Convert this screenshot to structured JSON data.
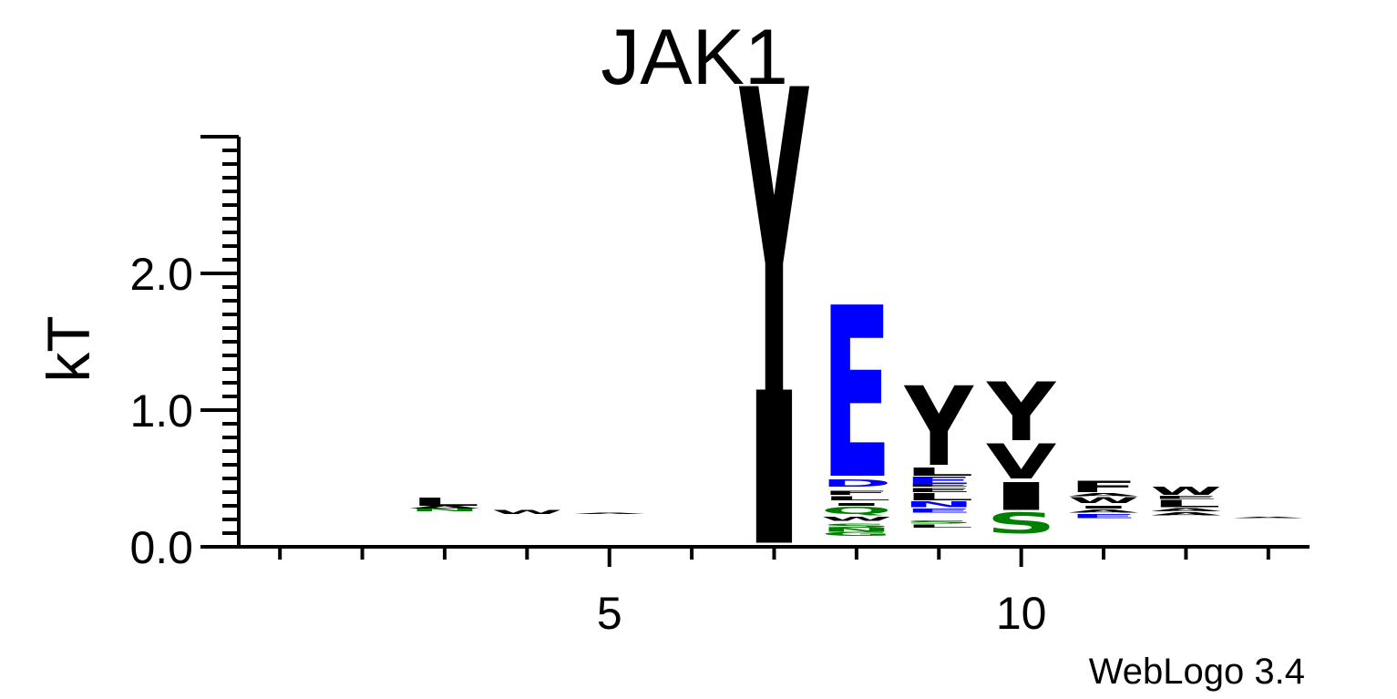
{
  "chart_data": {
    "type": "sequence-logo",
    "title": "JAK1",
    "ylabel": "kT",
    "xlabel": "",
    "ylim": [
      0,
      3.0
    ],
    "yticks": [
      {
        "value": 0,
        "label": "0.0"
      },
      {
        "value": 1,
        "label": "1.0"
      },
      {
        "value": 2,
        "label": "2.0"
      }
    ],
    "xlim": [
      0.5,
      13.5
    ],
    "xticks": [
      {
        "value": 5,
        "label": "5"
      },
      {
        "value": 10,
        "label": "10"
      }
    ],
    "credit": "WebLogo 3.4",
    "colors": {
      "hydrophobic": "#000000",
      "acidic": "#0000ff",
      "polar": "#008000",
      "axis": "#000000"
    },
    "positions": [
      {
        "pos": 3,
        "stack": [
          {
            "aa": "N",
            "color": "#008000",
            "base": 0.26,
            "height": 0.02
          },
          {
            "aa": "A",
            "color": "#000000",
            "base": 0.28,
            "height": 0.02
          },
          {
            "aa": "L",
            "color": "#000000",
            "base": 0.3,
            "height": 0.06
          }
        ]
      },
      {
        "pos": 4,
        "stack": [
          {
            "aa": "W",
            "color": "#000000",
            "base": 0.24,
            "height": 0.03
          }
        ]
      },
      {
        "pos": 5,
        "stack": [
          {
            "aa": "A",
            "color": "#000000",
            "base": 0.24,
            "height": 0.01
          }
        ]
      },
      {
        "pos": 7,
        "stack": [
          {
            "aa": "I",
            "color": "#000000",
            "base": 0.03,
            "height": 1.1
          },
          {
            "aa": "Y",
            "color": "#000000",
            "base": 1.13,
            "height": 2.2
          }
        ]
      },
      {
        "pos": 8,
        "stack": [
          {
            "aa": "G",
            "color": "#008000",
            "base": 0.08,
            "height": 0.03
          },
          {
            "aa": "N",
            "color": "#008000",
            "base": 0.11,
            "height": 0.03
          },
          {
            "aa": "S",
            "color": "#008000",
            "base": 0.14,
            "height": 0.03
          },
          {
            "aa": "W",
            "color": "#000000",
            "base": 0.19,
            "height": 0.03
          },
          {
            "aa": "Q",
            "color": "#008000",
            "base": 0.24,
            "height": 0.05
          },
          {
            "aa": "I",
            "color": "#000000",
            "base": 0.3,
            "height": 0.02
          },
          {
            "aa": "L",
            "color": "#000000",
            "base": 0.34,
            "height": 0.03
          },
          {
            "aa": "F",
            "color": "#000000",
            "base": 0.38,
            "height": 0.03
          },
          {
            "aa": "D",
            "color": "#0000ff",
            "base": 0.44,
            "height": 0.05
          },
          {
            "aa": "E",
            "color": "#0000ff",
            "base": 0.52,
            "height": 1.23
          }
        ]
      },
      {
        "pos": 9,
        "stack": [
          {
            "aa": "L",
            "color": "#000000",
            "base": 0.14,
            "height": 0.02
          },
          {
            "aa": "S",
            "color": "#008000",
            "base": 0.17,
            "height": 0.02
          },
          {
            "aa": "E",
            "color": "#0000ff",
            "base": 0.25,
            "height": 0.03
          },
          {
            "aa": "N",
            "color": "#0000ff",
            "base": 0.29,
            "height": 0.04
          },
          {
            "aa": "L",
            "color": "#000000",
            "base": 0.34,
            "height": 0.05
          },
          {
            "aa": "E",
            "color": "#000000",
            "base": 0.4,
            "height": 0.03
          },
          {
            "aa": "E",
            "color": "#000000",
            "base": 0.44,
            "height": 0.02
          },
          {
            "aa": "E",
            "color": "#0000ff",
            "base": 0.46,
            "height": 0.05
          },
          {
            "aa": "L",
            "color": "#000000",
            "base": 0.52,
            "height": 0.06
          },
          {
            "aa": "Y",
            "color": "#000000",
            "base": 0.6,
            "height": 0.57
          }
        ]
      },
      {
        "pos": 10,
        "stack": [
          {
            "aa": "S",
            "color": "#008000",
            "base": 0.1,
            "height": 0.15
          },
          {
            "aa": "I",
            "color": "#000000",
            "base": 0.27,
            "height": 0.2
          },
          {
            "aa": "V",
            "color": "#000000",
            "base": 0.5,
            "height": 0.25
          },
          {
            "aa": "Y",
            "color": "#000000",
            "base": 0.78,
            "height": 0.42
          }
        ]
      },
      {
        "pos": 11,
        "stack": [
          {
            "aa": "E",
            "color": "#0000ff",
            "base": 0.21,
            "height": 0.03
          },
          {
            "aa": "A",
            "color": "#000000",
            "base": 0.25,
            "height": 0.02
          },
          {
            "aa": "I",
            "color": "#000000",
            "base": 0.28,
            "height": 0.02
          },
          {
            "aa": "W",
            "color": "#000000",
            "base": 0.32,
            "height": 0.04
          },
          {
            "aa": "A",
            "color": "#000000",
            "base": 0.37,
            "height": 0.02
          },
          {
            "aa": "F",
            "color": "#000000",
            "base": 0.4,
            "height": 0.08
          }
        ]
      },
      {
        "pos": 12,
        "stack": [
          {
            "aa": "A",
            "color": "#000000",
            "base": 0.23,
            "height": 0.02
          },
          {
            "aa": "A",
            "color": "#000000",
            "base": 0.26,
            "height": 0.02
          },
          {
            "aa": "L",
            "color": "#000000",
            "base": 0.29,
            "height": 0.05
          },
          {
            "aa": "E",
            "color": "#000000",
            "base": 0.35,
            "height": 0.02
          },
          {
            "aa": "W",
            "color": "#000000",
            "base": 0.38,
            "height": 0.06
          }
        ]
      },
      {
        "pos": 13,
        "stack": [
          {
            "aa": "A",
            "color": "#000000",
            "base": 0.21,
            "height": 0.01
          }
        ]
      }
    ]
  }
}
